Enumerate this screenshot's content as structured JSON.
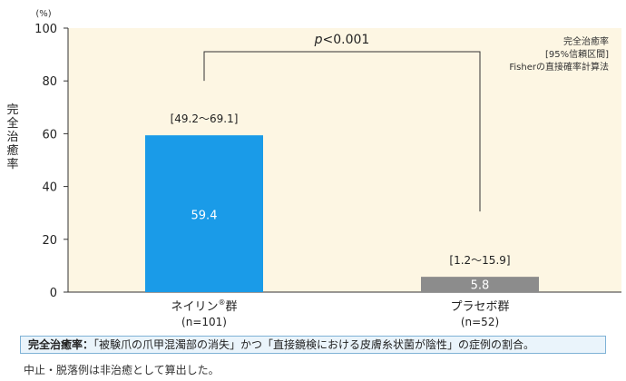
{
  "chart_data": {
    "type": "bar",
    "ylabel": "完全治癒率",
    "yunit": "(%)",
    "ylim": [
      0,
      100
    ],
    "yticks": [
      0,
      20,
      40,
      60,
      80,
      100
    ],
    "categories": [
      {
        "name": "ネイリン",
        "sup": "®",
        "suffix": "群",
        "n": "(n=101)"
      },
      {
        "name": "プラセボ群",
        "sup": "",
        "suffix": "",
        "n": "(n=52)"
      }
    ],
    "values": [
      59.4,
      5.8
    ],
    "value_labels": [
      "59.4",
      "5.8"
    ],
    "ci_labels": [
      "[49.2～69.1]",
      "[1.2～15.9]"
    ],
    "bar_colors": [
      "#1a9be8",
      "#8c8c8c"
    ],
    "significance": "p<0.001",
    "legend_note": [
      "完全治癒率",
      "[95%信頼区間]",
      "Fisherの直接確率計算法"
    ],
    "plot_background": "#fdf6e3"
  },
  "definition": {
    "term": "完全治癒率：",
    "text": "「被験爪の爪甲混濁部の消失」かつ「直接鏡検における皮膚糸状菌が陰性」の症例の割合。"
  },
  "note": "中止・脱落例は非治癒として算出した。"
}
